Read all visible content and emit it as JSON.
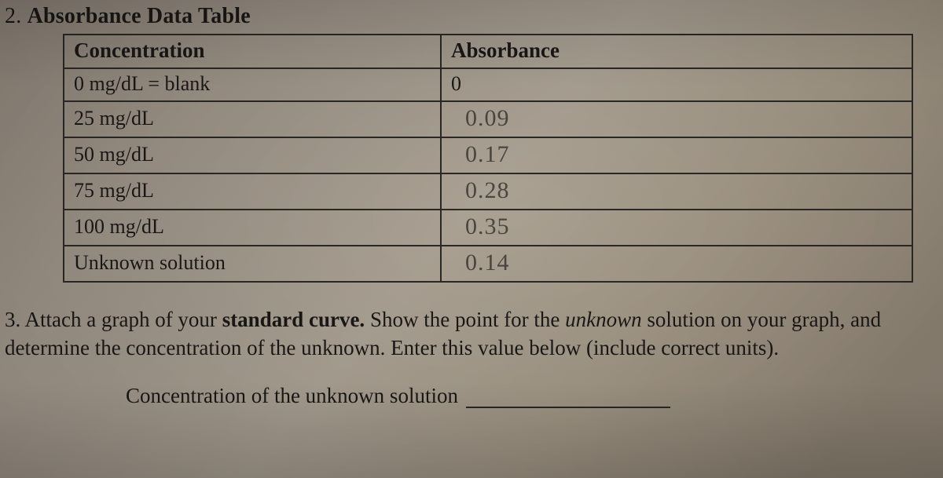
{
  "section2": {
    "number": "2.",
    "title": "Absorbance Data Table",
    "table": {
      "headers": {
        "col1": "Concentration",
        "col2": "Absorbance"
      },
      "rows": [
        {
          "concentration": "0 mg/dL = blank",
          "absorbance": "0",
          "absorbance_is_printed": true
        },
        {
          "concentration": "25 mg/dL",
          "absorbance": "0.09",
          "absorbance_is_printed": false
        },
        {
          "concentration": "50 mg/dL",
          "absorbance": "0.17",
          "absorbance_is_printed": false
        },
        {
          "concentration": "75 mg/dL",
          "absorbance": "0.28",
          "absorbance_is_printed": false
        },
        {
          "concentration": "100 mg/dL",
          "absorbance": "0.35",
          "absorbance_is_printed": false
        },
        {
          "concentration": "Unknown solution",
          "absorbance": "0.14",
          "absorbance_is_printed": false
        }
      ]
    }
  },
  "section3": {
    "number": "3.",
    "text_parts": {
      "p1": "Attach a graph of your ",
      "bold1": "standard curve.",
      "p2": "  Show the point for the ",
      "ital1": "unknown",
      "p3": " solution on your graph, and determine the concentration of the unknown.  Enter this value below (include correct units)."
    },
    "fill_label": "Concentration of the unknown solution"
  }
}
